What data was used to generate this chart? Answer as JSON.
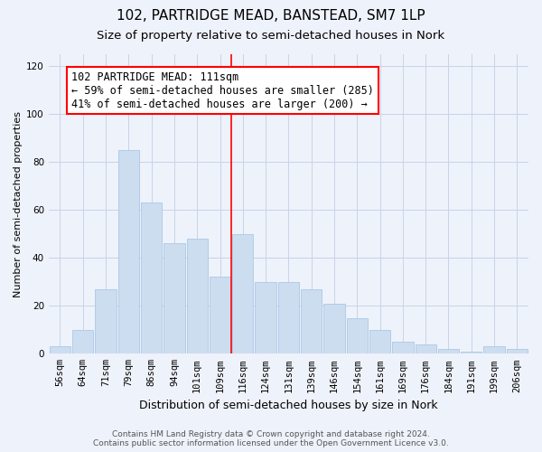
{
  "title": "102, PARTRIDGE MEAD, BANSTEAD, SM7 1LP",
  "subtitle": "Size of property relative to semi-detached houses in Nork",
  "xlabel": "Distribution of semi-detached houses by size in Nork",
  "ylabel": "Number of semi-detached properties",
  "categories": [
    "56sqm",
    "64sqm",
    "71sqm",
    "79sqm",
    "86sqm",
    "94sqm",
    "101sqm",
    "109sqm",
    "116sqm",
    "124sqm",
    "131sqm",
    "139sqm",
    "146sqm",
    "154sqm",
    "161sqm",
    "169sqm",
    "176sqm",
    "184sqm",
    "191sqm",
    "199sqm",
    "206sqm"
  ],
  "values": [
    3,
    10,
    27,
    85,
    63,
    46,
    48,
    32,
    50,
    30,
    30,
    27,
    21,
    15,
    10,
    5,
    4,
    2,
    1,
    3,
    2
  ],
  "bar_color": "#ccddef",
  "bar_edge_color": "#aac8e8",
  "vline_x_index": 7,
  "vline_color": "red",
  "annotation_text": "102 PARTRIDGE MEAD: 111sqm\n← 59% of semi-detached houses are smaller (285)\n41% of semi-detached houses are larger (200) →",
  "annotation_box_color": "white",
  "annotation_box_edge_color": "red",
  "ylim": [
    0,
    125
  ],
  "yticks": [
    0,
    20,
    40,
    60,
    80,
    100,
    120
  ],
  "grid_color": "#c8d4e8",
  "background_color": "#eef2fa",
  "footer_line1": "Contains HM Land Registry data © Crown copyright and database right 2024.",
  "footer_line2": "Contains public sector information licensed under the Open Government Licence v3.0.",
  "title_fontsize": 11,
  "subtitle_fontsize": 9.5,
  "xlabel_fontsize": 9,
  "ylabel_fontsize": 8,
  "tick_fontsize": 7.5,
  "annotation_fontsize": 8.5,
  "footer_fontsize": 6.5
}
